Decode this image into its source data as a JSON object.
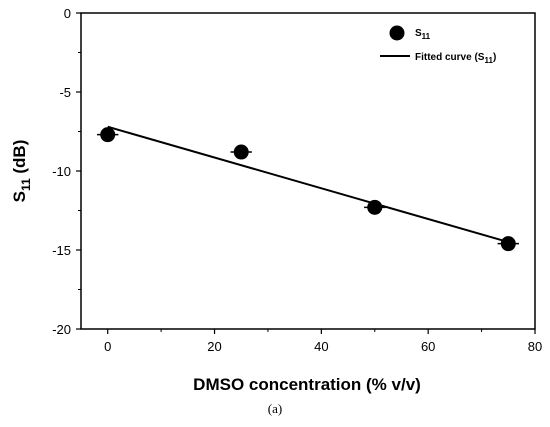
{
  "chart_data": {
    "type": "scatter",
    "xlabel": "DMSO concentration (% v/v)",
    "ylabel_main": "S",
    "ylabel_sub": "11",
    "ylabel_suffix": " (dB)",
    "xlim": [
      -5,
      80
    ],
    "ylim": [
      -20,
      0
    ],
    "xticks": [
      0,
      20,
      40,
      60,
      80
    ],
    "yticks": [
      0,
      -5,
      -10,
      -15,
      -20
    ],
    "series": [
      {
        "name": "S11",
        "name_main": "S",
        "name_sub": "11",
        "type": "scatter",
        "x": [
          0,
          25,
          50,
          75
        ],
        "y": [
          -7.7,
          -8.8,
          -12.3,
          -14.6
        ],
        "xerr": [
          2,
          2,
          2,
          2
        ]
      },
      {
        "name": "Fitted curve (S11)",
        "name_main": "Fitted curve (S",
        "name_sub": "11",
        "name_suffix": ")",
        "type": "line",
        "x": [
          0,
          75
        ],
        "y": [
          -7.2,
          -14.5
        ]
      }
    ],
    "legend_position": "top-right",
    "grid": false,
    "caption": "(a)",
    "colors": {
      "marker": "#000000",
      "line": "#000000"
    }
  }
}
